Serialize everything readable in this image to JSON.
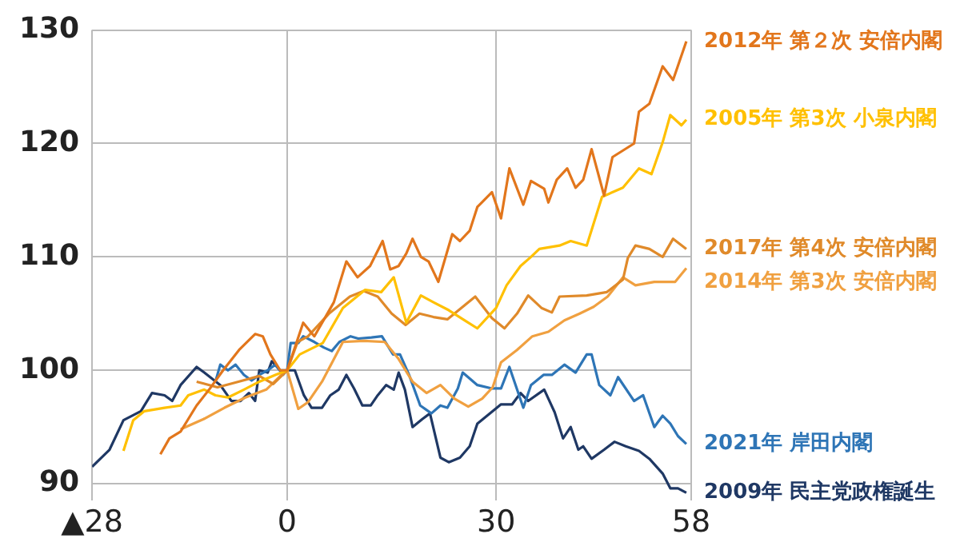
{
  "chart_data": {
    "type": "line",
    "xlim": [
      -28,
      58
    ],
    "ylim": [
      88.5,
      130
    ],
    "xticks": [
      {
        "value": -28,
        "label": "▲28"
      },
      0,
      30,
      58
    ],
    "yticks": [
      90,
      100,
      110,
      120,
      130
    ],
    "grid": true,
    "legend": false,
    "marker": "none",
    "series": [
      {
        "name": "2012年 第２次 安倍内閣",
        "color": "#e2761c",
        "x": [
          -18.2,
          -16.9,
          -15.3,
          -14.2,
          -13,
          -11.2,
          -9.2,
          -6.9,
          -4.6,
          -3.5,
          -2.4,
          -1,
          0,
          2.3,
          3.9,
          6.7,
          8.5,
          10.1,
          11.9,
          13.7,
          14.8,
          16,
          17.1,
          18,
          19.2,
          20.3,
          21.7,
          23.7,
          24.8,
          26.2,
          27.3,
          29.4,
          30.7,
          31.9,
          33.9,
          35,
          36.9,
          37.5,
          38.7,
          40.2,
          41.4,
          42.5,
          43.7,
          45.5,
          46.7,
          49.8,
          50.5,
          52,
          53.9,
          55.4,
          57.3
        ],
        "values": [
          92.6,
          94,
          94.6,
          95.7,
          96.9,
          98.3,
          100,
          101.8,
          103.2,
          103,
          101.4,
          100,
          100,
          104.2,
          103,
          106,
          109.6,
          108.2,
          109.2,
          111.4,
          108.9,
          109.2,
          110.3,
          111.6,
          110,
          109.6,
          107.8,
          112,
          111.4,
          112.3,
          114.4,
          115.7,
          113.4,
          117.8,
          114.6,
          116.7,
          116,
          114.8,
          116.8,
          117.8,
          116.1,
          116.8,
          119.5,
          115.4,
          118.8,
          120,
          122.8,
          123.5,
          126.8,
          125.6,
          129
        ]
      },
      {
        "name": "2005年 第3次 小泉内閣",
        "color": "#ffc000",
        "x": [
          -23.5,
          -22.1,
          -20.5,
          -17.6,
          -15.3,
          -14.2,
          -11.9,
          -10.3,
          -8.5,
          -6.2,
          -4,
          -1.7,
          0,
          1.8,
          5.1,
          8,
          11.2,
          13.5,
          15.3,
          17.1,
          19.2,
          21,
          23.2,
          25.5,
          27.3,
          30,
          31.5,
          33.5,
          35,
          36.2,
          39.1,
          40.7,
          43,
          45.2,
          48.2,
          50.5,
          52.3,
          53.9,
          55,
          56.6,
          57.3
        ],
        "values": [
          92.9,
          95.6,
          96.4,
          96.7,
          96.9,
          97.8,
          98.3,
          97.8,
          97.6,
          98.3,
          99,
          99.6,
          100,
          101.4,
          102.4,
          105.5,
          107.1,
          106.9,
          108.2,
          104.2,
          106.6,
          106,
          105.3,
          104.4,
          103.7,
          105.5,
          107.5,
          109.2,
          110,
          110.7,
          111,
          111.4,
          111,
          115.3,
          116.1,
          117.8,
          117.3,
          120.1,
          122.5,
          121.6,
          122.1
        ]
      },
      {
        "name": "2017年 第4次 安倍内閣",
        "color": "#e08a2a",
        "x": [
          -13,
          -10,
          -7,
          -4,
          -2,
          0,
          1.5,
          3,
          6,
          9,
          11,
          13,
          15,
          17,
          19,
          21,
          23,
          25,
          27,
          29.4,
          31.2,
          33,
          34.6,
          36.5,
          38,
          39.1,
          43,
          45.9,
          48.2,
          48.9,
          50,
          52,
          53.9,
          55.4,
          57.3
        ],
        "values": [
          99,
          98.5,
          99,
          99.5,
          98.8,
          100,
          102.5,
          103,
          105,
          106.5,
          107,
          106.5,
          105,
          104,
          105,
          104.7,
          104.5,
          105.5,
          106.5,
          104.6,
          103.7,
          105,
          106.6,
          105.5,
          105.1,
          106.5,
          106.6,
          106.9,
          108,
          109.9,
          111,
          110.7,
          110,
          111.6,
          110.7
        ]
      },
      {
        "name": "2014年 第3次 安倍内閣",
        "color": "#f0a040",
        "x": [
          -15.3,
          -12,
          -9,
          -6,
          -3,
          -1,
          0,
          1.6,
          3,
          5,
          8,
          11,
          14,
          16,
          18,
          20,
          22,
          24,
          26,
          28,
          29.5,
          30.7,
          33,
          35.2,
          37.5,
          39.8,
          42,
          44,
          46,
          48.2,
          50,
          52.7,
          55.7,
          57.3
        ],
        "values": [
          94.8,
          95.7,
          96.7,
          97.6,
          98.3,
          99.5,
          100,
          96.6,
          97.2,
          99,
          102.5,
          102.6,
          102.5,
          101,
          99,
          98,
          98.7,
          97.5,
          96.8,
          97.5,
          98.5,
          100.7,
          101.8,
          103,
          103.4,
          104.4,
          105,
          105.6,
          106.5,
          108.2,
          107.5,
          107.8,
          107.8,
          109
        ]
      },
      {
        "name": "2021年 岸田内閣",
        "color": "#2e75b6",
        "x": [
          -10.3,
          -9.6,
          -8.5,
          -7.4,
          -6.2,
          -5.1,
          -4,
          -2.8,
          -1.7,
          -0.6,
          0,
          0.5,
          1.6,
          2.3,
          3.9,
          5.3,
          6.4,
          7.5,
          9.1,
          10.2,
          12.1,
          13.6,
          15.2,
          16.2,
          17.5,
          19.1,
          20.7,
          22,
          23,
          24.5,
          25.2,
          27.3,
          29.4,
          30.7,
          31.9,
          33.9,
          35,
          36.8,
          38,
          39.8,
          41.4,
          43,
          43.7,
          44.8,
          46.4,
          47.5,
          49.8,
          51.1,
          52.7,
          53.9,
          55,
          56.1,
          57.3
        ],
        "values": [
          99,
          100.5,
          100,
          100.5,
          99.6,
          99.1,
          99.6,
          100,
          100.5,
          99.6,
          100,
          102.4,
          102.4,
          103,
          102.5,
          102,
          101.7,
          102.5,
          103,
          102.8,
          102.9,
          103,
          101.4,
          101.4,
          99.6,
          96.9,
          96.2,
          96.9,
          96.7,
          98.4,
          99.8,
          98.7,
          98.4,
          98.4,
          100.3,
          96.7,
          98.7,
          99.6,
          99.6,
          100.5,
          99.8,
          101.4,
          101.4,
          98.7,
          97.8,
          99.4,
          97.3,
          97.8,
          95,
          96,
          95.3,
          94.2,
          93.5
        ]
      },
      {
        "name": "2009年 民主党政権誕生",
        "color": "#1f3864",
        "x": [
          -28,
          -25.5,
          -23.5,
          -21,
          -19.4,
          -17.6,
          -16.5,
          -15.3,
          -13,
          -11.9,
          -9.6,
          -8,
          -6.7,
          -5.5,
          -4.6,
          -4,
          -2.8,
          -2.2,
          -1,
          0,
          1.1,
          2.4,
          3.5,
          5,
          6.2,
          7.4,
          8.5,
          9.6,
          10.8,
          12,
          13,
          14.2,
          15.3,
          16,
          16.9,
          18,
          19.4,
          20.5,
          22,
          23.2,
          24.8,
          26.2,
          27.3,
          30.7,
          32.3,
          33.5,
          34.6,
          36.9,
          38.4,
          39.6,
          40.7,
          41.8,
          42.5,
          43.7,
          45.5,
          47,
          48.6,
          50.5,
          52,
          53.9,
          55,
          56.1,
          57.3
        ],
        "values": [
          91.5,
          93,
          95.6,
          96.4,
          98,
          97.8,
          97.3,
          98.7,
          100.3,
          99.8,
          98.7,
          97.3,
          97.3,
          98,
          97.3,
          100,
          99.8,
          100.8,
          100,
          100,
          100,
          97.8,
          96.7,
          96.7,
          97.8,
          98.3,
          99.6,
          98.4,
          96.9,
          96.9,
          97.8,
          98.7,
          98.3,
          99.8,
          98.3,
          95,
          95.7,
          96.2,
          92.3,
          91.9,
          92.3,
          93.3,
          95.3,
          97,
          97,
          98,
          97.3,
          98.3,
          96.3,
          94,
          95,
          93,
          93.3,
          92.2,
          93,
          93.7,
          93.3,
          92.9,
          92.2,
          90.9,
          89.6,
          89.6,
          89.2
        ]
      }
    ]
  }
}
